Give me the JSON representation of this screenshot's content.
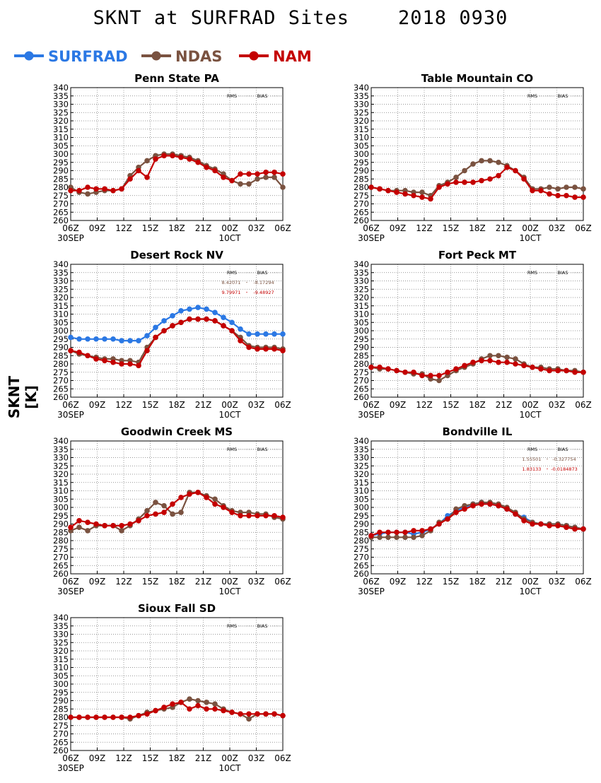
{
  "title": "SKNT at SURFRAD Sites    2018 0930",
  "ylabel": "SKNT [K]",
  "legend": [
    {
      "name": "SURFRAD",
      "color": "#2b78e4"
    },
    {
      "name": "NDAS",
      "color": "#7a5240"
    },
    {
      "name": "NAM",
      "color": "#c40000"
    }
  ],
  "stats_headers": [
    "RMS",
    "BIAS"
  ],
  "chart_data": [
    {
      "type": "line",
      "title": "Penn State PA",
      "ylim": [
        260,
        340
      ],
      "yticks": [
        260,
        265,
        270,
        275,
        280,
        285,
        290,
        295,
        300,
        305,
        310,
        315,
        320,
        325,
        330,
        335,
        340
      ],
      "xtick_labels": [
        "06Z",
        "09Z",
        "12Z",
        "15Z",
        "18Z",
        "21Z",
        "00Z",
        "03Z",
        "06Z"
      ],
      "xdate_labels": [
        {
          "at": 0,
          "text": "30SEP"
        },
        {
          "at": 6,
          "text": "10CT"
        }
      ],
      "grid": true,
      "stats": [],
      "series": [
        {
          "name": "NDAS",
          "values": [
            280,
            277,
            276,
            277,
            278,
            278,
            279,
            287,
            292,
            296,
            299,
            300,
            300,
            299,
            298,
            296,
            293,
            291,
            288,
            284,
            282,
            282,
            285,
            286,
            286,
            280
          ]
        },
        {
          "name": "NAM",
          "values": [
            278,
            278,
            280,
            279,
            279,
            278,
            279,
            285,
            290,
            286,
            297,
            299,
            299,
            298,
            297,
            295,
            292,
            290,
            286,
            284,
            288,
            288,
            288,
            289,
            289,
            288
          ]
        }
      ]
    },
    {
      "type": "line",
      "title": "Table Mountain CO",
      "ylim": [
        260,
        340
      ],
      "yticks": [
        260,
        265,
        270,
        275,
        280,
        285,
        290,
        295,
        300,
        305,
        310,
        315,
        320,
        325,
        330,
        335,
        340
      ],
      "xtick_labels": [
        "06Z",
        "09Z",
        "12Z",
        "15Z",
        "18Z",
        "21Z",
        "00Z",
        "03Z",
        "06Z"
      ],
      "xdate_labels": [
        {
          "at": 0,
          "text": "30SEP"
        },
        {
          "at": 6,
          "text": "10CT"
        }
      ],
      "grid": true,
      "stats": [],
      "series": [
        {
          "name": "NDAS",
          "values": [
            280,
            279,
            278,
            278,
            278,
            277,
            277,
            275,
            281,
            283,
            286,
            290,
            294,
            296,
            296,
            295,
            293,
            290,
            286,
            279,
            279,
            280,
            279,
            280,
            280,
            279
          ]
        },
        {
          "name": "NAM",
          "values": [
            280,
            279,
            278,
            277,
            276,
            275,
            274,
            273,
            280,
            282,
            283,
            283,
            283,
            284,
            285,
            287,
            292,
            290,
            285,
            278,
            278,
            276,
            275,
            275,
            274,
            274
          ]
        }
      ]
    },
    {
      "type": "line",
      "title": "Desert Rock NV",
      "ylim": [
        260,
        340
      ],
      "yticks": [
        260,
        265,
        270,
        275,
        280,
        285,
        290,
        295,
        300,
        305,
        310,
        315,
        320,
        325,
        330,
        335,
        340
      ],
      "xtick_labels": [
        "06Z",
        "09Z",
        "12Z",
        "15Z",
        "18Z",
        "21Z",
        "00Z",
        "03Z",
        "06Z"
      ],
      "xdate_labels": [
        {
          "at": 0,
          "text": "30SEP"
        },
        {
          "at": 6,
          "text": "10CT"
        }
      ],
      "grid": true,
      "stats": [
        {
          "series": "NDAS",
          "rms": "8.42071",
          "bias": "-8.17294"
        },
        {
          "series": "NAM",
          "rms": "9.79971",
          "bias": "-9.48927"
        }
      ],
      "series": [
        {
          "name": "SURFRAD",
          "values": [
            296,
            295,
            295,
            295,
            295,
            295,
            294,
            294,
            294,
            297,
            302,
            306,
            309,
            312,
            313,
            314,
            313,
            311,
            308,
            305,
            301,
            298,
            298,
            298,
            298,
            298
          ]
        },
        {
          "name": "NDAS",
          "values": [
            288,
            286,
            285,
            284,
            283,
            283,
            282,
            282,
            281,
            290,
            296,
            300,
            303,
            305,
            307,
            307,
            307,
            306,
            303,
            300,
            296,
            291,
            290,
            290,
            290,
            289
          ]
        },
        {
          "name": "NAM",
          "values": [
            288,
            287,
            285,
            283,
            282,
            281,
            280,
            280,
            279,
            288,
            296,
            300,
            303,
            305,
            307,
            307,
            307,
            306,
            303,
            300,
            294,
            290,
            289,
            289,
            289,
            288
          ]
        }
      ]
    },
    {
      "type": "line",
      "title": "Fort Peck MT",
      "ylim": [
        260,
        340
      ],
      "yticks": [
        260,
        265,
        270,
        275,
        280,
        285,
        290,
        295,
        300,
        305,
        310,
        315,
        320,
        325,
        330,
        335,
        340
      ],
      "xtick_labels": [
        "06Z",
        "09Z",
        "12Z",
        "15Z",
        "18Z",
        "21Z",
        "00Z",
        "03Z",
        "06Z"
      ],
      "xdate_labels": [
        {
          "at": 0,
          "text": "30SEP"
        },
        {
          "at": 6,
          "text": "10CT"
        }
      ],
      "grid": true,
      "stats": [],
      "series": [
        {
          "name": "NDAS",
          "values": [
            278,
            277,
            277,
            276,
            275,
            274,
            274,
            271,
            270,
            273,
            276,
            278,
            280,
            283,
            285,
            285,
            284,
            283,
            280,
            278,
            278,
            277,
            277,
            276,
            276,
            275
          ]
        },
        {
          "name": "NAM",
          "values": [
            278,
            278,
            277,
            276,
            275,
            275,
            273,
            273,
            273,
            275,
            277,
            279,
            281,
            282,
            282,
            281,
            281,
            280,
            279,
            278,
            277,
            276,
            276,
            276,
            275,
            275
          ]
        }
      ]
    },
    {
      "type": "line",
      "title": "Goodwin Creek MS",
      "ylim": [
        260,
        340
      ],
      "yticks": [
        260,
        265,
        270,
        275,
        280,
        285,
        290,
        295,
        300,
        305,
        310,
        315,
        320,
        325,
        330,
        335,
        340
      ],
      "xtick_labels": [
        "06Z",
        "09Z",
        "12Z",
        "15Z",
        "18Z",
        "21Z",
        "00Z",
        "03Z",
        "06Z"
      ],
      "xdate_labels": [
        {
          "at": 0,
          "text": "30SEP"
        },
        {
          "at": 6,
          "text": "10CT"
        }
      ],
      "grid": true,
      "stats": [],
      "series": [
        {
          "name": "NDAS",
          "values": [
            286,
            288,
            286,
            289,
            289,
            289,
            286,
            289,
            293,
            298,
            303,
            301,
            296,
            297,
            309,
            309,
            307,
            305,
            301,
            298,
            297,
            297,
            296,
            296,
            294,
            293
          ]
        },
        {
          "name": "NAM",
          "values": [
            288,
            292,
            291,
            290,
            289,
            289,
            289,
            290,
            292,
            295,
            296,
            297,
            302,
            306,
            308,
            309,
            306,
            302,
            300,
            297,
            295,
            295,
            295,
            295,
            295,
            294
          ]
        }
      ]
    },
    {
      "type": "line",
      "title": "Bondville IL",
      "ylim": [
        260,
        340
      ],
      "yticks": [
        260,
        265,
        270,
        275,
        280,
        285,
        290,
        295,
        300,
        305,
        310,
        315,
        320,
        325,
        330,
        335,
        340
      ],
      "xtick_labels": [
        "06Z",
        "09Z",
        "12Z",
        "15Z",
        "18Z",
        "21Z",
        "00Z",
        "03Z",
        "06Z"
      ],
      "xdate_labels": [
        {
          "at": 0,
          "text": "30SEP"
        },
        {
          "at": 6,
          "text": "10CT"
        }
      ],
      "grid": true,
      "stats": [
        {
          "series": "NDAS",
          "rms": "1.55501",
          "bias": "-0.327754"
        },
        {
          "series": "NAM",
          "rms": "1.83133",
          "bias": "-0.0184873"
        }
      ],
      "series": [
        {
          "name": "SURFRAD",
          "values": [
            283,
            284,
            285,
            285,
            285,
            284,
            285,
            287,
            290,
            295,
            298,
            300,
            302,
            303,
            302,
            301,
            299,
            296,
            294,
            291,
            290,
            290,
            290,
            289,
            288,
            287
          ]
        },
        {
          "name": "NDAS",
          "values": [
            282,
            282,
            282,
            282,
            282,
            282,
            283,
            286,
            291,
            293,
            299,
            301,
            302,
            303,
            303,
            302,
            300,
            297,
            293,
            291,
            290,
            290,
            290,
            289,
            288,
            287
          ]
        },
        {
          "name": "NAM",
          "values": [
            283,
            285,
            285,
            285,
            285,
            286,
            286,
            287,
            290,
            293,
            297,
            299,
            301,
            302,
            302,
            301,
            299,
            296,
            292,
            290,
            290,
            289,
            289,
            288,
            287,
            287
          ]
        }
      ]
    },
    {
      "type": "line",
      "title": "Sioux Fall SD",
      "ylim": [
        260,
        340
      ],
      "yticks": [
        260,
        265,
        270,
        275,
        280,
        285,
        290,
        295,
        300,
        305,
        310,
        315,
        320,
        325,
        330,
        335,
        340
      ],
      "xtick_labels": [
        "06Z",
        "09Z",
        "12Z",
        "15Z",
        "18Z",
        "21Z",
        "00Z",
        "03Z",
        "06Z"
      ],
      "xdate_labels": [
        {
          "at": 0,
          "text": "30SEP"
        },
        {
          "at": 6,
          "text": "10CT"
        }
      ],
      "grid": true,
      "stats": [],
      "series": [
        {
          "name": "NDAS",
          "values": [
            280,
            280,
            280,
            280,
            280,
            280,
            280,
            279,
            281,
            283,
            284,
            285,
            286,
            289,
            291,
            290,
            289,
            288,
            285,
            283,
            282,
            279,
            282,
            282,
            282,
            281
          ]
        },
        {
          "name": "NAM",
          "values": [
            280,
            280,
            280,
            280,
            280,
            280,
            280,
            280,
            281,
            282,
            284,
            286,
            288,
            289,
            285,
            287,
            285,
            285,
            284,
            283,
            282,
            282,
            282,
            282,
            282,
            281
          ]
        }
      ]
    }
  ]
}
